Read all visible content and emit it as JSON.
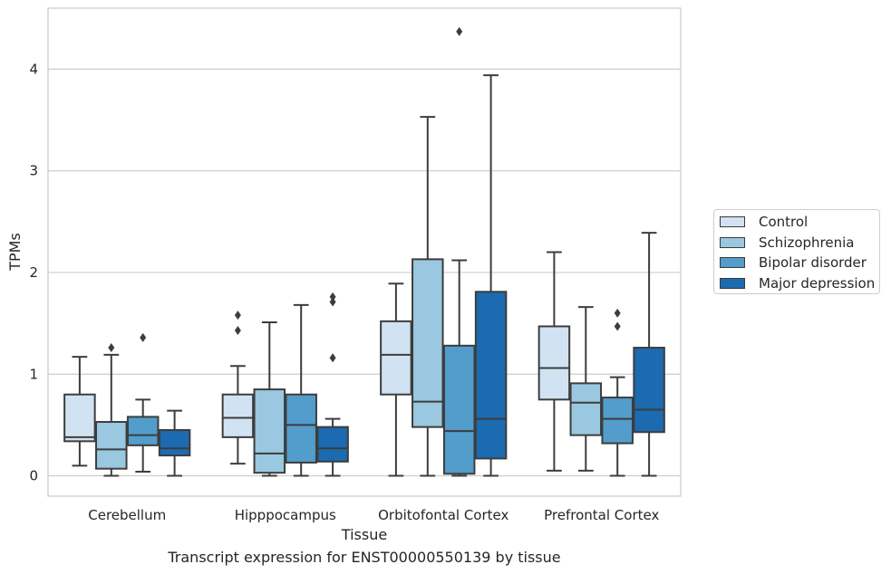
{
  "chart_data": {
    "type": "box",
    "title": "",
    "caption": "Transcript expression for ENST00000550139 by tissue",
    "xlabel": "Tissue",
    "ylabel": "TPMs",
    "ylim": [
      -0.2,
      4.6
    ],
    "yticks": [
      0,
      1,
      2,
      3,
      4
    ],
    "grid": "horizontal",
    "legend_position": "right",
    "categories": [
      "Cerebellum",
      "Hipppocampus",
      "Orbitofontal Cortex",
      "Prefrontal Cortex"
    ],
    "series": [
      {
        "name": "Control",
        "color": "#d1e2f2",
        "boxes": [
          {
            "min": 0.1,
            "q1": 0.34,
            "median": 0.38,
            "q3": 0.8,
            "max": 1.17,
            "outliers": []
          },
          {
            "min": 0.12,
            "q1": 0.38,
            "median": 0.57,
            "q3": 0.8,
            "max": 1.08,
            "outliers": [
              1.43,
              1.58
            ]
          },
          {
            "min": 0.0,
            "q1": 0.8,
            "median": 1.19,
            "q3": 1.52,
            "max": 1.89,
            "outliers": []
          },
          {
            "min": 0.05,
            "q1": 0.75,
            "median": 1.06,
            "q3": 1.47,
            "max": 2.2,
            "outliers": []
          }
        ]
      },
      {
        "name": "Schizophrenia",
        "color": "#9ac8e0",
        "boxes": [
          {
            "min": 0.0,
            "q1": 0.07,
            "median": 0.26,
            "q3": 0.53,
            "max": 1.19,
            "outliers": [
              1.26
            ]
          },
          {
            "min": 0.0,
            "q1": 0.03,
            "median": 0.22,
            "q3": 0.85,
            "max": 1.51,
            "outliers": []
          },
          {
            "min": 0.0,
            "q1": 0.48,
            "median": 0.73,
            "q3": 2.13,
            "max": 3.53,
            "outliers": []
          },
          {
            "min": 0.05,
            "q1": 0.4,
            "median": 0.72,
            "q3": 0.91,
            "max": 1.66,
            "outliers": []
          }
        ]
      },
      {
        "name": "Bipolar disorder",
        "color": "#529dcc",
        "boxes": [
          {
            "min": 0.04,
            "q1": 0.3,
            "median": 0.4,
            "q3": 0.58,
            "max": 0.75,
            "outliers": [
              1.36
            ]
          },
          {
            "min": 0.0,
            "q1": 0.13,
            "median": 0.5,
            "q3": 0.8,
            "max": 1.68,
            "outliers": []
          },
          {
            "min": 0.0,
            "q1": 0.02,
            "median": 0.44,
            "q3": 1.28,
            "max": 2.12,
            "outliers": [
              4.37
            ]
          },
          {
            "min": 0.0,
            "q1": 0.32,
            "median": 0.56,
            "q3": 0.77,
            "max": 0.97,
            "outliers": [
              1.47,
              1.6
            ]
          }
        ]
      },
      {
        "name": "Major depression",
        "color": "#1c6aaf",
        "boxes": [
          {
            "min": 0.0,
            "q1": 0.2,
            "median": 0.27,
            "q3": 0.45,
            "max": 0.64,
            "outliers": []
          },
          {
            "min": 0.0,
            "q1": 0.14,
            "median": 0.27,
            "q3": 0.48,
            "max": 0.56,
            "outliers": [
              1.16,
              1.71,
              1.76
            ]
          },
          {
            "min": 0.0,
            "q1": 0.17,
            "median": 0.56,
            "q3": 1.81,
            "max": 3.94,
            "outliers": []
          },
          {
            "min": 0.0,
            "q1": 0.43,
            "median": 0.65,
            "q3": 1.26,
            "max": 2.39,
            "outliers": []
          }
        ]
      }
    ]
  }
}
